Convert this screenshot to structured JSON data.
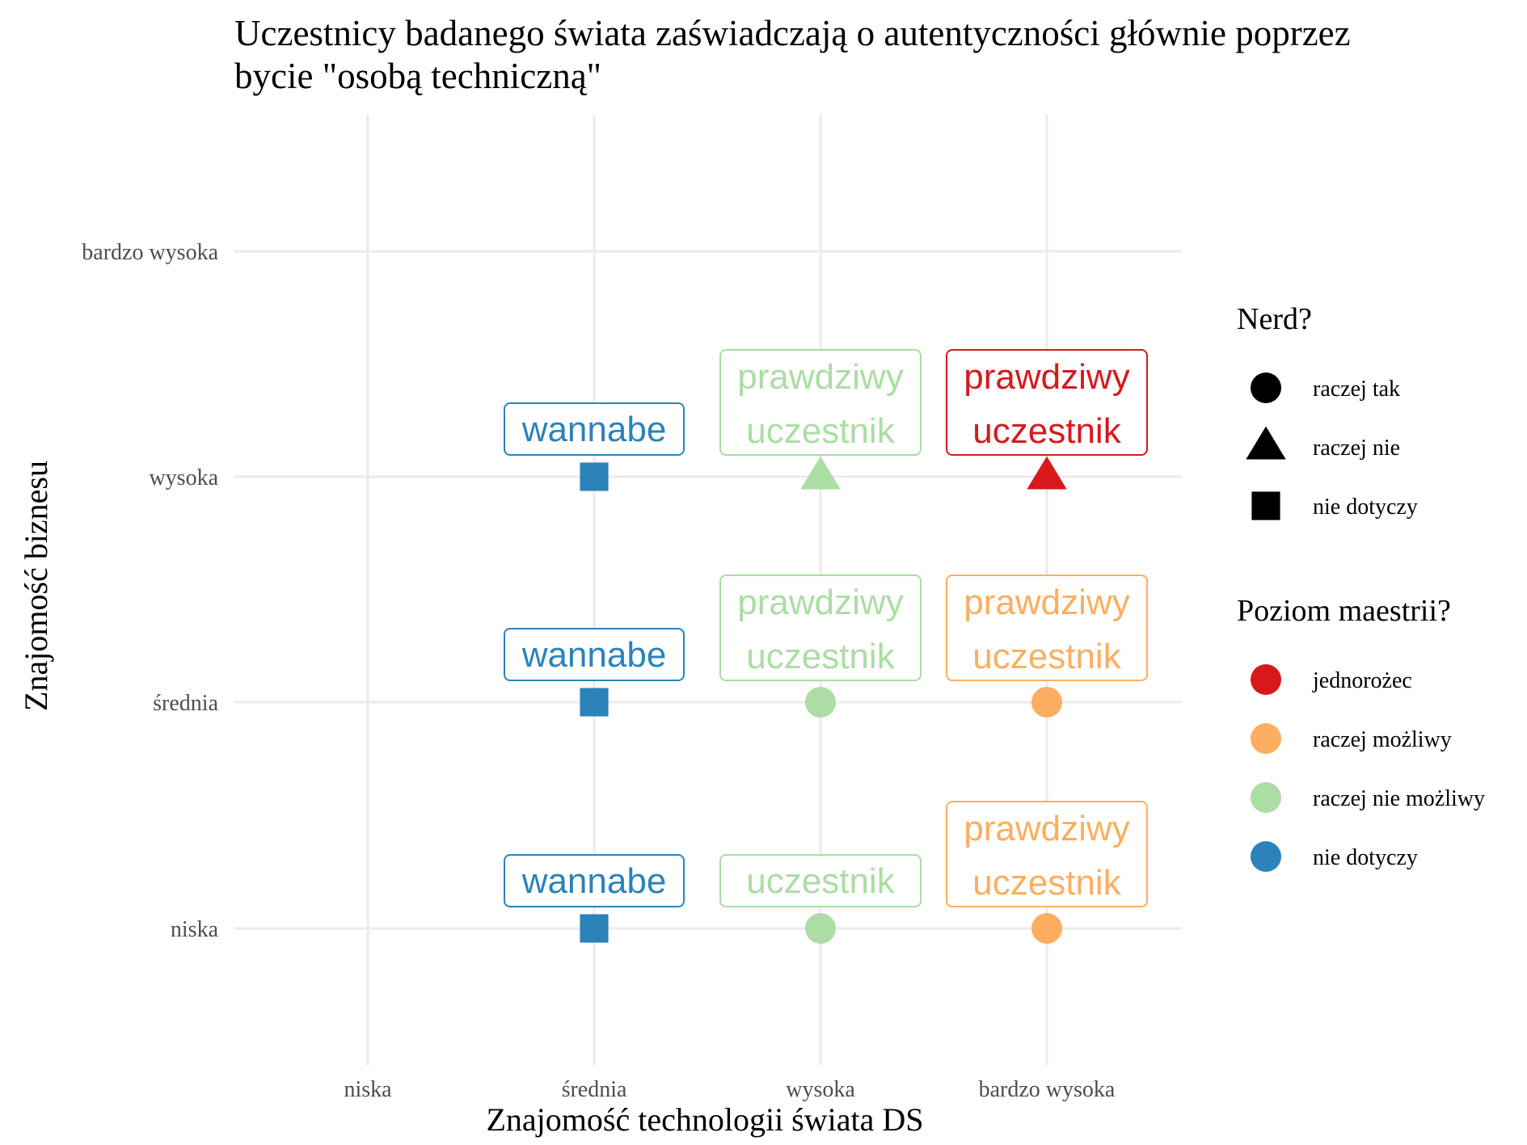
{
  "chart_data": {
    "type": "scatter",
    "title": "Uczestnicy badanego świata zaświadczają o autentyczności głównie poprzez bycie \"osobą techniczną\"",
    "title_lines": [
      "Uczestnicy badanego świata zaświadczają o autentyczności głównie poprzez",
      "bycie \"osobą techniczną\""
    ],
    "xlabel": "Znajomość technologii świata DS",
    "ylabel": "Znajomość biznesu",
    "x_categories": [
      "niska",
      "średnia",
      "wysoka",
      "bardzo wysoka"
    ],
    "y_categories": [
      "niska",
      "średnia",
      "wysoka",
      "bardzo wysoka"
    ],
    "grid": true,
    "legend_position": "right",
    "legends": {
      "shape": {
        "title": "Nerd?",
        "items": [
          {
            "label": "raczej tak",
            "shape": "circle"
          },
          {
            "label": "raczej nie",
            "shape": "triangle"
          },
          {
            "label": "nie dotyczy",
            "shape": "square"
          }
        ]
      },
      "color": {
        "title": "Poziom maestrii?",
        "items": [
          {
            "label": "jednorożec",
            "color": "#d7191c"
          },
          {
            "label": "raczej możliwy",
            "color": "#fdae61"
          },
          {
            "label": "raczej nie możliwy",
            "color": "#abdda4"
          },
          {
            "label": "nie dotyczy",
            "color": "#2b83ba"
          }
        ]
      }
    },
    "points": [
      {
        "x": "średnia",
        "y": "niska",
        "nerd": "nie dotyczy",
        "mastery": "nie dotyczy",
        "label": [
          "wannabe"
        ]
      },
      {
        "x": "średnia",
        "y": "średnia",
        "nerd": "nie dotyczy",
        "mastery": "nie dotyczy",
        "label": [
          "wannabe"
        ]
      },
      {
        "x": "średnia",
        "y": "wysoka",
        "nerd": "nie dotyczy",
        "mastery": "nie dotyczy",
        "label": [
          "wannabe"
        ]
      },
      {
        "x": "wysoka",
        "y": "niska",
        "nerd": "raczej tak",
        "mastery": "raczej nie możliwy",
        "label": [
          "uczestnik"
        ]
      },
      {
        "x": "wysoka",
        "y": "średnia",
        "nerd": "raczej tak",
        "mastery": "raczej nie możliwy",
        "label": [
          "prawdziwy",
          "uczestnik"
        ]
      },
      {
        "x": "wysoka",
        "y": "wysoka",
        "nerd": "raczej nie",
        "mastery": "raczej nie możliwy",
        "label": [
          "prawdziwy",
          "uczestnik"
        ]
      },
      {
        "x": "bardzo wysoka",
        "y": "niska",
        "nerd": "raczej tak",
        "mastery": "raczej możliwy",
        "label": [
          "prawdziwy",
          "uczestnik"
        ]
      },
      {
        "x": "bardzo wysoka",
        "y": "średnia",
        "nerd": "raczej tak",
        "mastery": "raczej możliwy",
        "label": [
          "prawdziwy",
          "uczestnik"
        ]
      },
      {
        "x": "bardzo wysoka",
        "y": "wysoka",
        "nerd": "raczej nie",
        "mastery": "jednorożec",
        "label": [
          "prawdziwy",
          "uczestnik"
        ]
      }
    ]
  }
}
